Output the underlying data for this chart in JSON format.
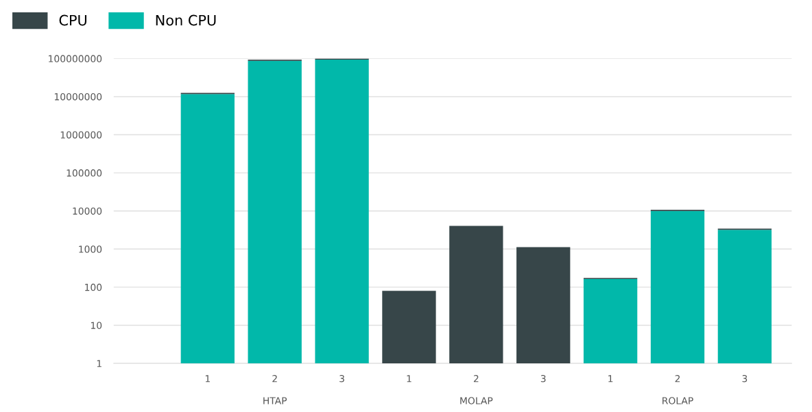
{
  "chart_data": {
    "type": "bar",
    "stacked": true,
    "log": true,
    "grid": "y",
    "legend": "top left",
    "categories": [
      "1",
      "2",
      "3",
      "1",
      "2",
      "3",
      "1",
      "2",
      "3"
    ],
    "series": [
      {
        "name": "Non CPU",
        "color": "#01b8aa",
        "values": [
          11700000,
          87000000,
          93000000,
          null,
          null,
          null,
          164,
          10000,
          3200
        ]
      },
      {
        "name": "CPU",
        "color": "#374649",
        "values": [
          800000,
          6000000,
          6000000,
          80,
          4060,
          1120,
          11,
          700,
          230
        ]
      }
    ],
    "ylim": [
      1,
      100000000
    ],
    "yticks": [
      1,
      10,
      100,
      1000,
      10000,
      100000,
      1000000,
      10000000,
      100000000
    ],
    "annotations": [
      "HTAP",
      "MOLAP",
      "ROLAP"
    ]
  }
}
